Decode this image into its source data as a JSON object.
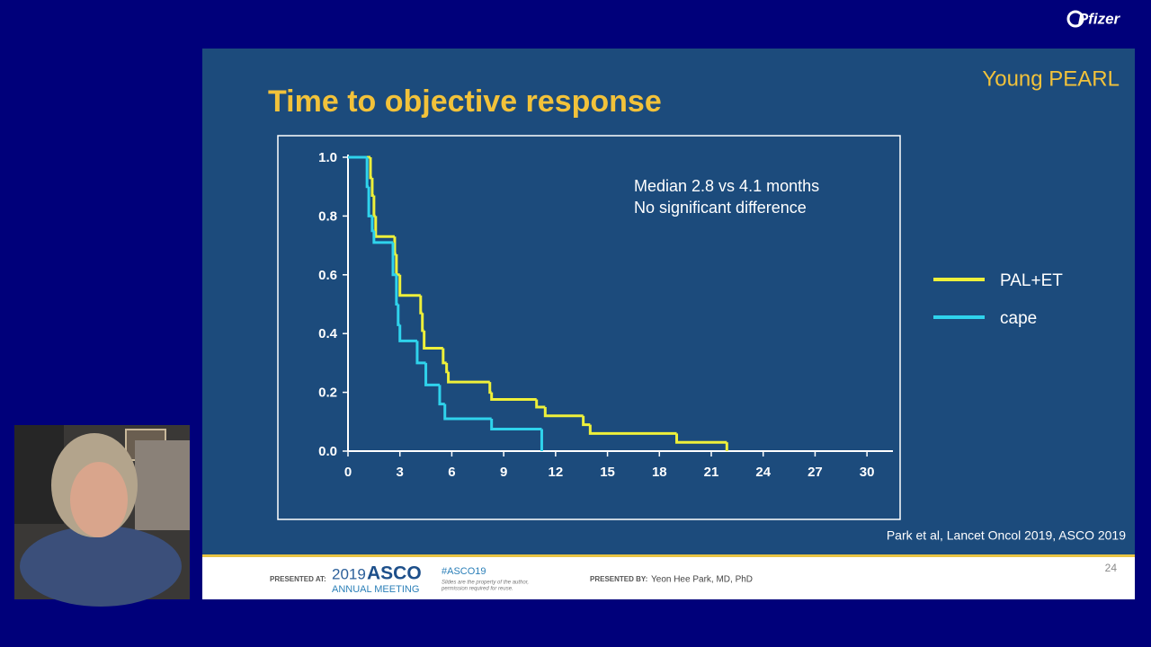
{
  "brand": "Pfizer",
  "slide": {
    "tag": "Young PEARL",
    "source": "Park et al, Lancet Oncol 2019, ASCO 2019",
    "page_number": 24,
    "footer": {
      "presented_at": "PRESENTED AT:",
      "meeting_year": "2019",
      "meeting_name": "ASCO",
      "meeting_sub": "ANNUAL MEETING",
      "hashtag": "#ASCO19",
      "disclaimer_1": "Slides are the property of the author,",
      "disclaimer_2": "permission required for reuse.",
      "presented_by": "PRESENTED BY:",
      "presenter": "Yeon Hee Park, MD, PhD"
    }
  },
  "chart_data": {
    "type": "step",
    "title": "Time to objective response",
    "annotations": [
      "Median 2.8 vs 4.1 months",
      "No significant difference"
    ],
    "xlim": [
      0,
      31.5
    ],
    "ylim": [
      0,
      1
    ],
    "xticks": [
      0,
      3,
      6,
      9,
      12,
      15,
      18,
      21,
      24,
      27,
      30
    ],
    "yticks": [
      {
        "value": 0,
        "label": "0.0"
      },
      0.2,
      0.4,
      0.6,
      0.8,
      {
        "value": 1,
        "label": "1.0"
      }
    ],
    "legend": "right",
    "series": [
      {
        "name": "PAL+ET",
        "color": "#eef03a",
        "x": [
          0,
          1.3,
          1.4,
          1.5,
          1.6,
          2.7,
          2.8,
          3.0,
          4.2,
          4.3,
          4.4,
          5.5,
          5.7,
          5.8,
          8.2,
          8.3,
          10.9,
          11.4,
          13.6,
          14.0,
          19.0,
          21.9
        ],
        "values": [
          1,
          0.93,
          0.87,
          0.8,
          0.73,
          0.67,
          0.6,
          0.53,
          0.47,
          0.41,
          0.35,
          0.3,
          0.27,
          0.235,
          0.2,
          0.176,
          0.15,
          0.12,
          0.09,
          0.06,
          0.03,
          0
        ]
      },
      {
        "name": "cape",
        "color": "#2fd3ec",
        "x": [
          0,
          1.1,
          1.2,
          1.4,
          1.5,
          2.6,
          2.8,
          2.9,
          3.0,
          4.0,
          4.5,
          5.3,
          5.6,
          8.3,
          11.2
        ],
        "values": [
          1,
          0.9,
          0.8,
          0.75,
          0.71,
          0.6,
          0.5,
          0.43,
          0.375,
          0.3,
          0.225,
          0.16,
          0.11,
          0.075,
          0
        ]
      }
    ]
  }
}
